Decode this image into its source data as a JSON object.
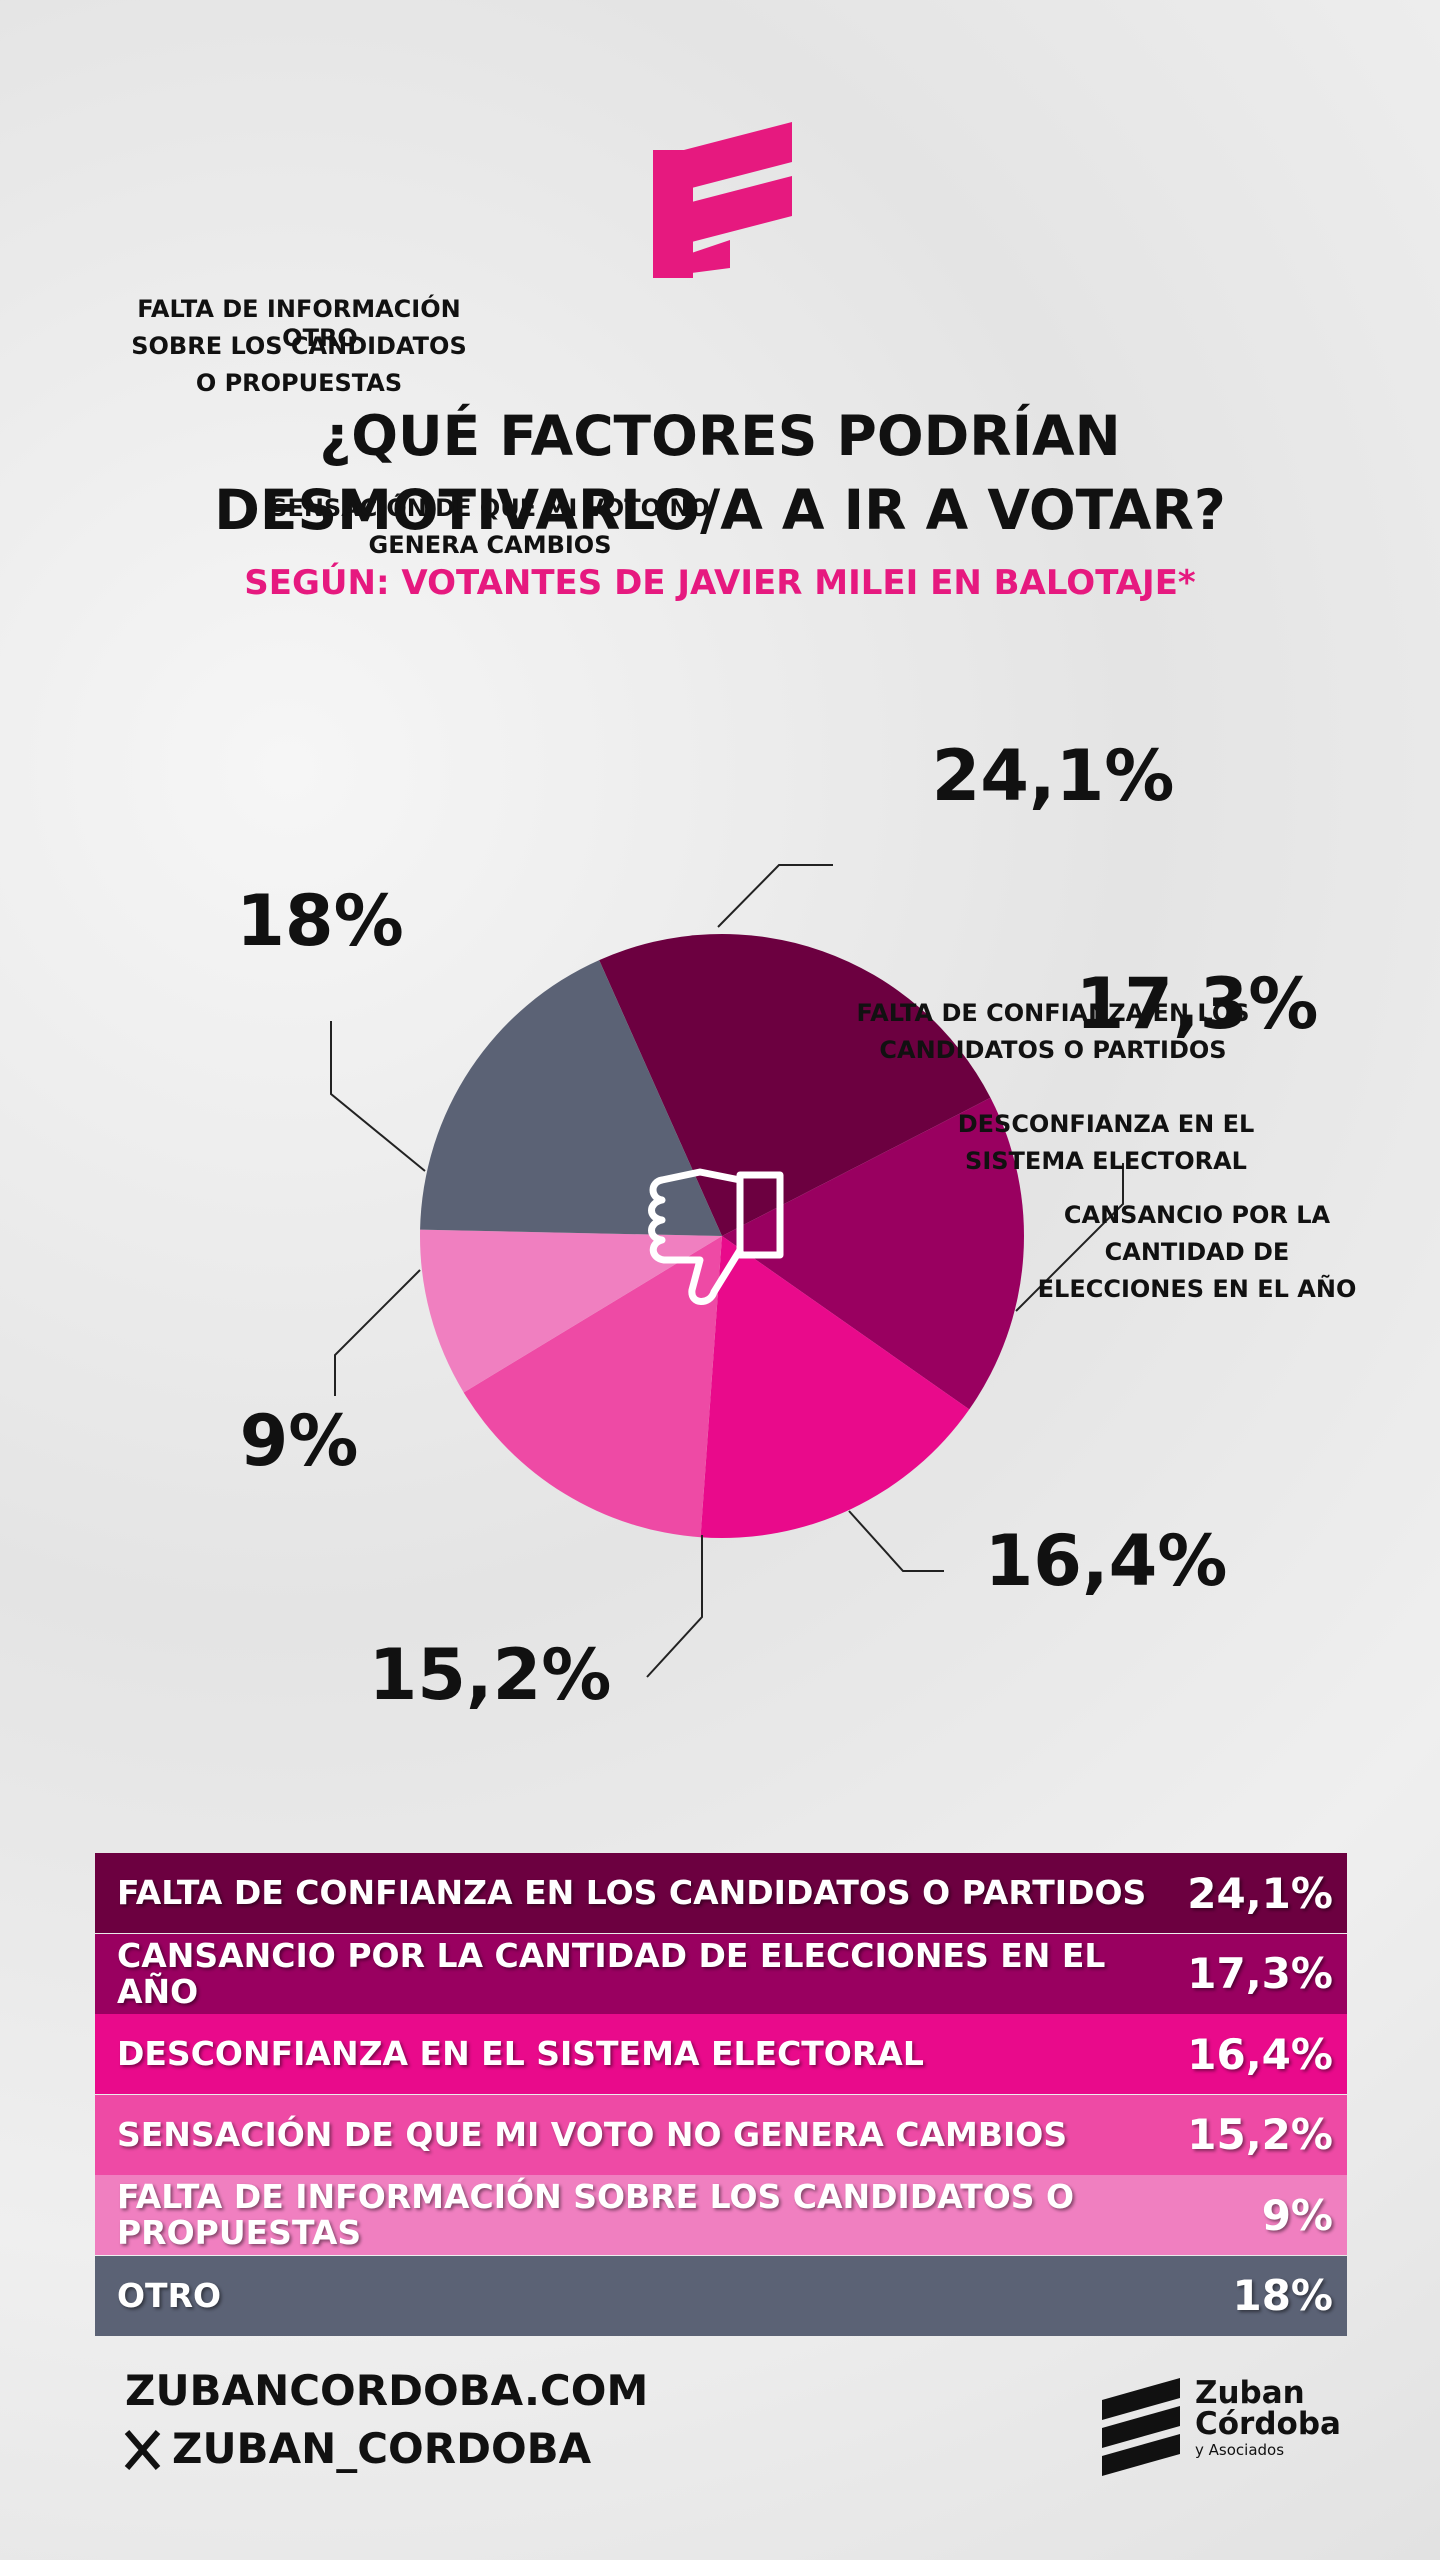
{
  "header": {
    "title": [
      "¿QUÉ FACTORES PODRÍAN",
      "DESMOTIVARLO/A A IR A VOTAR?"
    ],
    "subtitle": "SEGÚN: VOTANTES DE JAVIER MILEI EN BALOTAJE*"
  },
  "chart_data": {
    "type": "pie",
    "categories": [
      "FALTA DE CONFIANZA EN LOS CANDIDATOS O PARTIDOS",
      "CANSANCIO POR LA CANTIDAD DE ELECCIONES EN EL AÑO",
      "DESCONFIANZA EN EL SISTEMA ELECTORAL",
      "SENSACIÓN DE QUE MI VOTO NO GENERA CAMBIOS",
      "FALTA DE INFORMACIÓN SOBRE LOS CANDIDATOS O PROPUESTAS",
      "OTRO"
    ],
    "values": [
      24.1,
      17.3,
      16.4,
      15.2,
      9,
      18
    ],
    "value_labels": [
      "24,1%",
      "17,3%",
      "16,4%",
      "15,2%",
      "9%",
      "18%"
    ],
    "colors": [
      "#6c0040",
      "#990060",
      "#e90a8b",
      "#ee4aa5",
      "#f07fc0",
      "#5b6275"
    ]
  },
  "footer": {
    "website": "ZUBANCORDOBA.COM",
    "social": "ZUBAN_CORDOBA",
    "brand": [
      "Zuban",
      "Córdoba",
      "y Asociados"
    ]
  }
}
